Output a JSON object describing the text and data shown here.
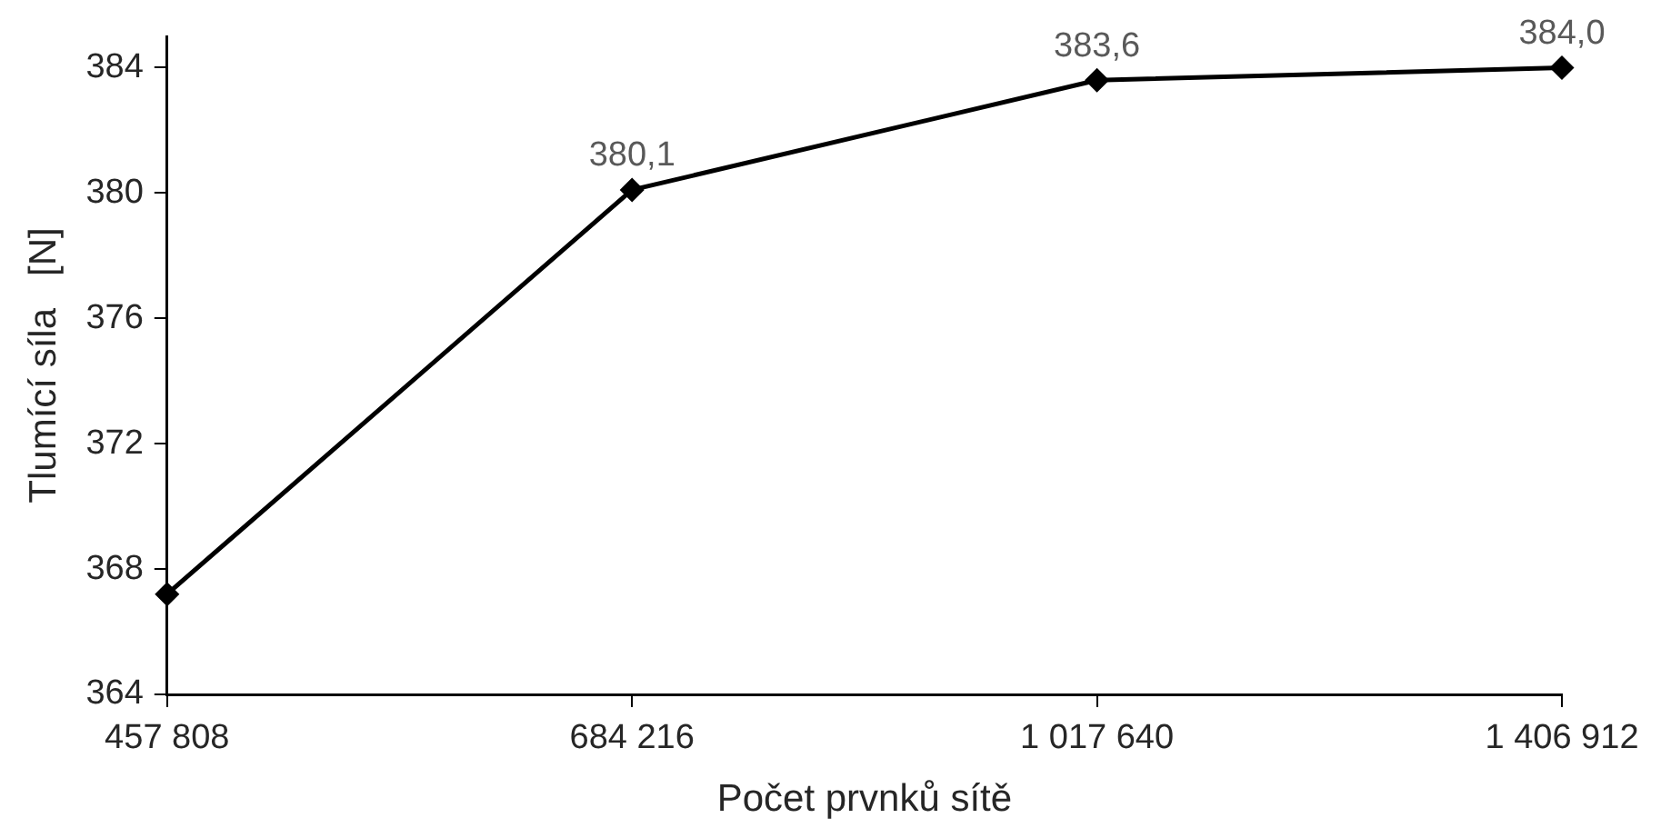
{
  "chart_data": {
    "type": "line",
    "xlabel": "Počet prvnků sítě",
    "ylabel": "Tlumící síla   [N]",
    "categories": [
      "457 808",
      "684 216",
      "1 017 640",
      "1 406 912"
    ],
    "series": [
      {
        "color": "#000000",
        "values": [
          367.2,
          380.1,
          383.6,
          384.0
        ],
        "value_labels": [
          null,
          "380,1",
          "383,6",
          "384,0"
        ]
      }
    ],
    "ylim": [
      364,
      385
    ],
    "yticks": [
      364,
      368,
      372,
      376,
      380,
      384
    ],
    "grid": false,
    "legend": false,
    "marker": "diamond",
    "line_style": "solid"
  }
}
